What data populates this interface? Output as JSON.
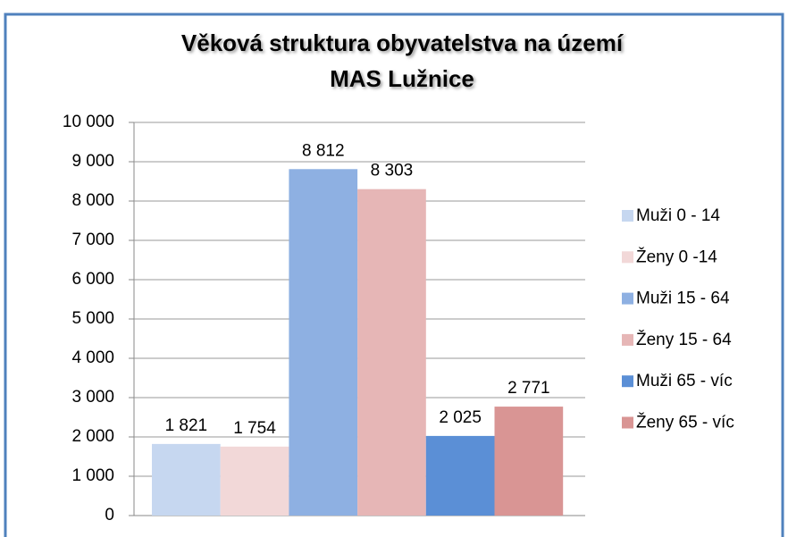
{
  "chart_data": {
    "type": "bar",
    "title": [
      "Věková struktura obyvatelstva na území",
      "MAS Lužnice"
    ],
    "categories": [
      null
    ],
    "series": [
      {
        "name": "Muži 0 - 14",
        "color": "#c6d7f0",
        "values": [
          1821
        ],
        "value_labels": [
          "1 821"
        ]
      },
      {
        "name": "Ženy 0 -14",
        "color": "#f2d8d8",
        "values": [
          1754
        ],
        "value_labels": [
          "1 754"
        ]
      },
      {
        "name": "Muži 15 - 64",
        "color": "#8eb0e2",
        "values": [
          8812
        ],
        "value_labels": [
          "8 812"
        ]
      },
      {
        "name": "Ženy 15 - 64",
        "color": "#e6b6b6",
        "values": [
          8303
        ],
        "value_labels": [
          "8 303"
        ]
      },
      {
        "name": "Muži 65 - víc",
        "color": "#5b8fd6",
        "values": [
          2025
        ],
        "value_labels": [
          "2 025"
        ]
      },
      {
        "name": "Ženy 65 - víc",
        "color": "#d99594",
        "values": [
          2771
        ],
        "value_labels": [
          "2 771"
        ]
      }
    ],
    "ylim": [
      0,
      10000
    ],
    "yticks": [
      0,
      {
        "value": 1000,
        "label": "1 000"
      },
      {
        "value": 2000,
        "label": "2 000"
      },
      {
        "value": 3000,
        "label": "3 000"
      },
      {
        "value": 4000,
        "label": "4 000"
      },
      {
        "value": 5000,
        "label": "5 000"
      },
      {
        "value": 6000,
        "label": "6 000"
      },
      {
        "value": 7000,
        "label": "7 000"
      },
      {
        "value": 8000,
        "label": "8 000"
      },
      {
        "value": 9000,
        "label": "9 000"
      },
      {
        "value": 10000,
        "label": "10 000"
      }
    ],
    "grid": true,
    "legend": "right"
  }
}
